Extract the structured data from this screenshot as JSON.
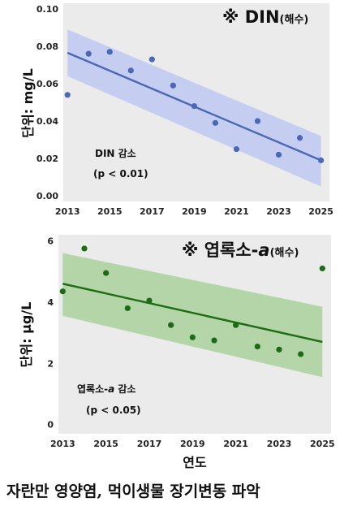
{
  "caption": "자란만 영양염, 먹이생물 장기변동 파악",
  "chart_data": [
    {
      "type": "scatter",
      "title": "※ DIN",
      "title_suffix": "(해수)",
      "xlabel": "",
      "ylabel": "단위: mg/L",
      "xlim": [
        2012.8,
        2025.4
      ],
      "ylim": [
        -0.003,
        0.103
      ],
      "xticks": [
        "2013",
        "2015",
        "2017",
        "2019",
        "2021",
        "2023",
        "2025"
      ],
      "yticks": [
        "0.00",
        "0.02",
        "0.04",
        "0.06",
        "0.08",
        "0.10"
      ],
      "x": [
        2013,
        2014,
        2015,
        2016,
        2017,
        2018,
        2019,
        2020,
        2021,
        2022,
        2023,
        2024,
        2025
      ],
      "values": [
        0.054,
        0.076,
        0.077,
        0.067,
        0.073,
        0.059,
        0.048,
        0.039,
        0.025,
        0.04,
        0.022,
        0.031,
        0.019
      ],
      "trend": {
        "start": [
          2013,
          0.0765
        ],
        "end": [
          2025,
          0.019
        ]
      },
      "ci_band": {
        "upper": [
          0.089,
          0.032
        ],
        "lower": [
          0.064,
          0.005
        ]
      },
      "annotation": "DIN 감소",
      "pvalue": "(p < 0.01)",
      "color": "#4b67b8",
      "band_color": "#c5cdf0",
      "grid": false
    },
    {
      "type": "scatter",
      "title": "※ 엽록소-",
      "title_italic": "a",
      "title_suffix": "(해수)",
      "xlabel": "연도",
      "ylabel": "단위: μg/L",
      "xlim": [
        2012.8,
        2025.4
      ],
      "ylim": [
        -0.3,
        6.2
      ],
      "xticks": [
        "2013",
        "2015",
        "2017",
        "2019",
        "2021",
        "2023",
        "2025"
      ],
      "yticks": [
        "0",
        "2",
        "4",
        "6"
      ],
      "x": [
        2013,
        2014,
        2015,
        2016,
        2017,
        2018,
        2019,
        2020,
        2021,
        2022,
        2023,
        2024,
        2025
      ],
      "values": [
        4.35,
        5.75,
        4.95,
        3.8,
        4.05,
        3.25,
        2.85,
        2.75,
        3.25,
        2.55,
        2.45,
        2.3,
        5.1
      ],
      "trend": {
        "start": [
          2013,
          4.6
        ],
        "end": [
          2025,
          2.7
        ]
      },
      "ci_band": {
        "upper": [
          5.6,
          3.85
        ],
        "lower": [
          3.55,
          1.55
        ]
      },
      "annotation_prefix": "엽록소-",
      "annotation_italic": "a",
      "annotation_suffix": " 감소",
      "pvalue": "(p < 0.05)",
      "color": "#1d6b14",
      "band_color": "#b4d5a8",
      "grid": false
    }
  ]
}
